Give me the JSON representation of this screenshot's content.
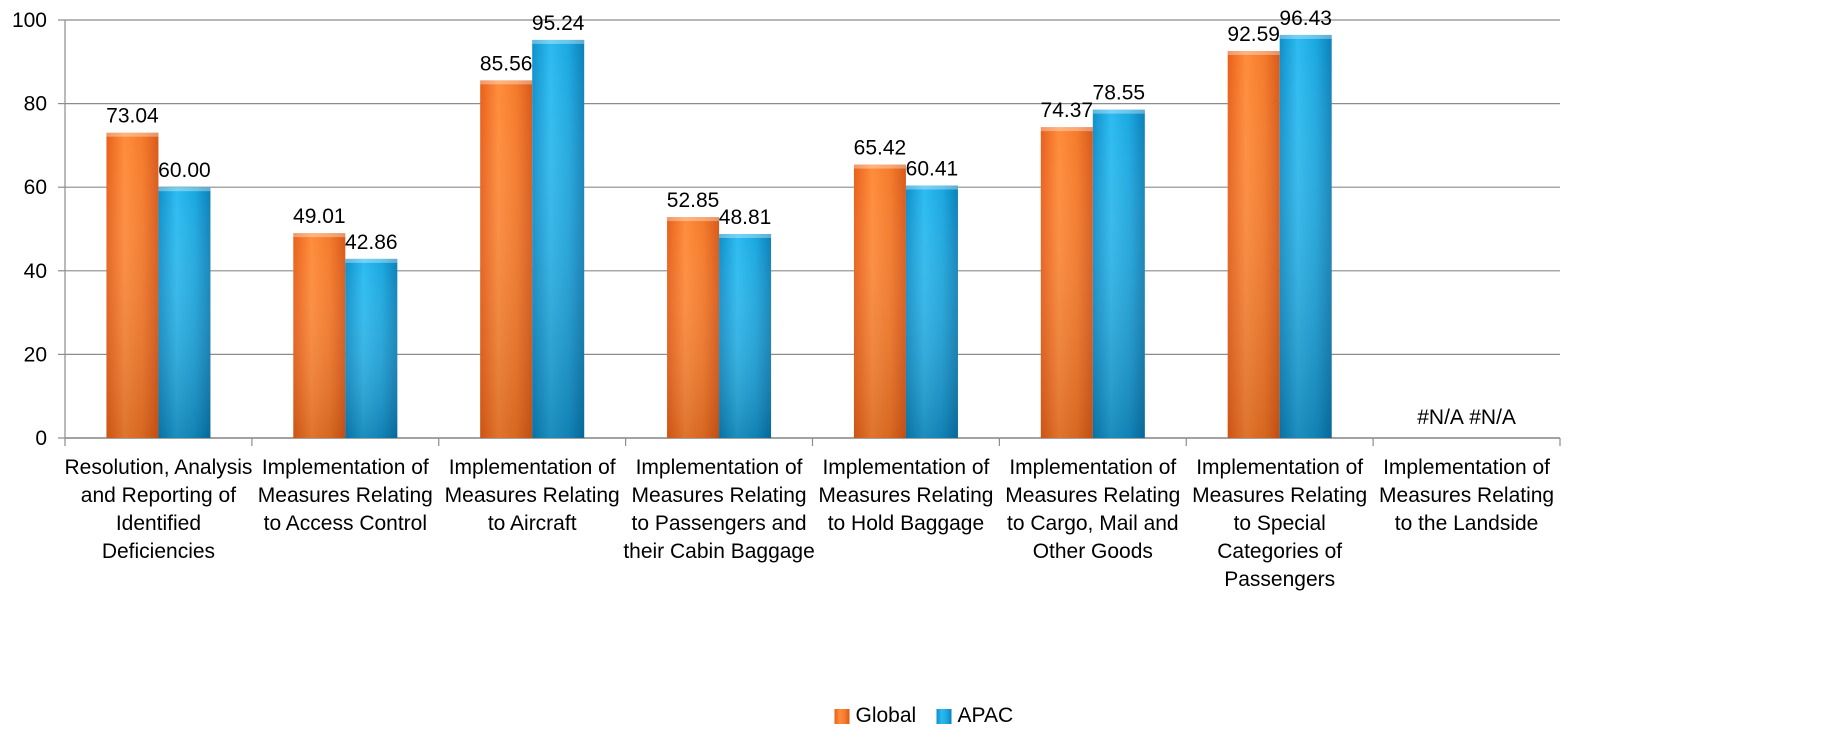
{
  "chart_data": {
    "type": "bar",
    "categories": [
      [
        "Resolution, Analysis",
        "and Reporting of",
        "Identified",
        "Deficiencies"
      ],
      [
        "Implementation of",
        "Measures Relating",
        "to Access Control"
      ],
      [
        "Implementation of",
        "Measures Relating",
        "to Aircraft"
      ],
      [
        "Implementation of",
        "Measures Relating",
        "to Passengers and",
        "their Cabin Baggage"
      ],
      [
        "Implementation of",
        "Measures Relating",
        "to Hold Baggage"
      ],
      [
        "Implementation of",
        "Measures Relating",
        "to Cargo, Mail and",
        "Other Goods"
      ],
      [
        "Implementation of",
        "Measures Relating",
        "to Special",
        "Categories of",
        "Passengers"
      ],
      [
        "Implementation of",
        "Measures Relating",
        "to the Landside"
      ]
    ],
    "series": [
      {
        "name": "Global",
        "color": "#F47A2A",
        "values": [
          73.04,
          49.01,
          85.56,
          52.85,
          65.42,
          74.37,
          92.59,
          null
        ],
        "labels": [
          "73.04",
          "49.01",
          "85.56",
          "52.85",
          "65.42",
          "74.37",
          "92.59",
          "#N/A"
        ]
      },
      {
        "name": "APAC",
        "color": "#1AA7E0",
        "values": [
          60.0,
          42.86,
          95.24,
          48.81,
          60.41,
          78.55,
          96.43,
          null
        ],
        "labels": [
          "60.00",
          "42.86",
          "95.24",
          "48.81",
          "60.41",
          "78.55",
          "96.43",
          "#N/A"
        ]
      }
    ],
    "yticks": [
      "0",
      "20",
      "40",
      "60",
      "80",
      "100"
    ],
    "ylim": [
      0,
      100
    ],
    "grid": true,
    "legend": "bottom-center",
    "title": "",
    "xlabel": "",
    "ylabel": ""
  }
}
